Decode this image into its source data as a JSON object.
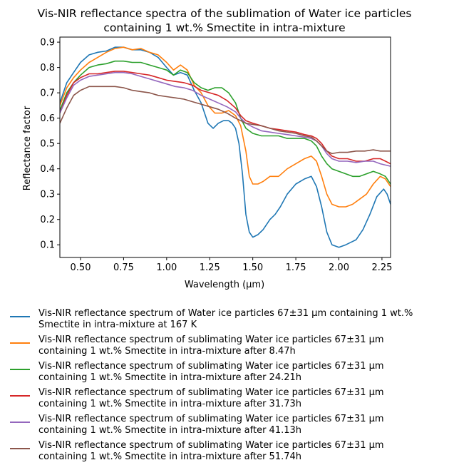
{
  "chart_data": {
    "type": "line",
    "title": "Vis-NIR reflectance spectra of the sublimation of Water ice particles\ncontaining 1 wt.% Smectite in intra-mixture",
    "xlabel": "Wavelength (μm)",
    "ylabel": "Reflectance factor",
    "xlim": [
      0.38,
      2.3
    ],
    "ylim": [
      0.05,
      0.92
    ],
    "xticks": [
      "0.50",
      "0.75",
      "1.00",
      "1.25",
      "1.50",
      "1.75",
      "2.00",
      "2.25"
    ],
    "xtick_values": [
      0.5,
      0.75,
      1.0,
      1.25,
      1.5,
      1.75,
      2.0,
      2.25
    ],
    "yticks": [
      "0.1",
      "0.2",
      "0.3",
      "0.4",
      "0.5",
      "0.6",
      "0.7",
      "0.8",
      "0.9"
    ],
    "ytick_values": [
      0.1,
      0.2,
      0.3,
      0.4,
      0.5,
      0.6,
      0.7,
      0.8,
      0.9
    ],
    "grid": false,
    "legend_position": "below",
    "series": [
      {
        "name": "Vis-NIR reflectance spectrum of Water ice particles 67±31 μm containing 1 wt.%\nSmectite in intra-mixture at 167 K",
        "color": "#1f77b4",
        "x": [
          0.38,
          0.42,
          0.46,
          0.5,
          0.55,
          0.6,
          0.65,
          0.7,
          0.75,
          0.8,
          0.85,
          0.9,
          0.95,
          1.0,
          1.04,
          1.08,
          1.12,
          1.16,
          1.2,
          1.24,
          1.27,
          1.3,
          1.33,
          1.36,
          1.38,
          1.4,
          1.42,
          1.44,
          1.46,
          1.48,
          1.5,
          1.53,
          1.56,
          1.6,
          1.63,
          1.66,
          1.7,
          1.75,
          1.8,
          1.84,
          1.87,
          1.9,
          1.93,
          1.96,
          2.0,
          2.04,
          2.07,
          2.1,
          2.14,
          2.18,
          2.22,
          2.26,
          2.28,
          2.3
        ],
        "y": [
          0.66,
          0.74,
          0.78,
          0.82,
          0.85,
          0.86,
          0.865,
          0.88,
          0.88,
          0.87,
          0.87,
          0.86,
          0.84,
          0.8,
          0.77,
          0.78,
          0.77,
          0.71,
          0.66,
          0.58,
          0.56,
          0.58,
          0.59,
          0.59,
          0.58,
          0.56,
          0.5,
          0.38,
          0.22,
          0.15,
          0.13,
          0.14,
          0.16,
          0.2,
          0.22,
          0.25,
          0.3,
          0.34,
          0.36,
          0.37,
          0.33,
          0.25,
          0.15,
          0.1,
          0.09,
          0.1,
          0.11,
          0.12,
          0.16,
          0.22,
          0.29,
          0.32,
          0.3,
          0.26
        ]
      },
      {
        "name": "Vis-NIR reflectance spectrum of sublimating Water ice particles 67±31 μm\ncontaining 1 wt.% Smectite in intra-mixture after 8.47h",
        "color": "#ff7f0e",
        "x": [
          0.38,
          0.42,
          0.46,
          0.5,
          0.55,
          0.6,
          0.65,
          0.7,
          0.75,
          0.8,
          0.85,
          0.9,
          0.95,
          1.0,
          1.04,
          1.08,
          1.12,
          1.16,
          1.2,
          1.24,
          1.28,
          1.32,
          1.36,
          1.4,
          1.43,
          1.46,
          1.48,
          1.5,
          1.53,
          1.56,
          1.6,
          1.65,
          1.7,
          1.75,
          1.8,
          1.84,
          1.87,
          1.9,
          1.93,
          1.96,
          2.0,
          2.04,
          2.08,
          2.12,
          2.16,
          2.2,
          2.24,
          2.27,
          2.3
        ],
        "y": [
          0.65,
          0.72,
          0.76,
          0.79,
          0.82,
          0.84,
          0.86,
          0.875,
          0.88,
          0.87,
          0.875,
          0.86,
          0.85,
          0.82,
          0.79,
          0.81,
          0.79,
          0.73,
          0.7,
          0.65,
          0.62,
          0.62,
          0.63,
          0.61,
          0.57,
          0.47,
          0.37,
          0.34,
          0.34,
          0.35,
          0.37,
          0.37,
          0.4,
          0.42,
          0.44,
          0.45,
          0.43,
          0.37,
          0.3,
          0.26,
          0.25,
          0.25,
          0.26,
          0.28,
          0.3,
          0.34,
          0.37,
          0.36,
          0.33
        ]
      },
      {
        "name": "Vis-NIR reflectance spectrum of sublimating Water ice particles 67±31 μm\ncontaining 1 wt.% Smectite in intra-mixture after 24.21h",
        "color": "#2ca02c",
        "x": [
          0.38,
          0.42,
          0.46,
          0.5,
          0.55,
          0.6,
          0.65,
          0.7,
          0.75,
          0.8,
          0.85,
          0.9,
          0.95,
          1.0,
          1.04,
          1.08,
          1.12,
          1.16,
          1.2,
          1.24,
          1.28,
          1.32,
          1.36,
          1.4,
          1.43,
          1.46,
          1.5,
          1.55,
          1.6,
          1.65,
          1.7,
          1.75,
          1.8,
          1.84,
          1.87,
          1.9,
          1.93,
          1.96,
          2.0,
          2.04,
          2.08,
          2.12,
          2.16,
          2.2,
          2.24,
          2.27,
          2.3
        ],
        "y": [
          0.63,
          0.7,
          0.74,
          0.77,
          0.8,
          0.81,
          0.815,
          0.825,
          0.825,
          0.82,
          0.82,
          0.81,
          0.8,
          0.79,
          0.77,
          0.79,
          0.78,
          0.74,
          0.72,
          0.71,
          0.72,
          0.72,
          0.7,
          0.66,
          0.6,
          0.56,
          0.54,
          0.53,
          0.53,
          0.53,
          0.52,
          0.52,
          0.52,
          0.51,
          0.49,
          0.45,
          0.42,
          0.4,
          0.39,
          0.38,
          0.37,
          0.37,
          0.38,
          0.39,
          0.38,
          0.37,
          0.34
        ]
      },
      {
        "name": "Vis-NIR reflectance spectrum of sublimating Water ice particles 67±31 μm\ncontaining 1 wt.% Smectite in intra-mixture after 31.73h",
        "color": "#d62728",
        "x": [
          0.38,
          0.42,
          0.46,
          0.5,
          0.55,
          0.6,
          0.65,
          0.7,
          0.75,
          0.8,
          0.85,
          0.9,
          0.95,
          1.0,
          1.05,
          1.1,
          1.15,
          1.2,
          1.25,
          1.3,
          1.35,
          1.4,
          1.43,
          1.46,
          1.5,
          1.55,
          1.6,
          1.65,
          1.7,
          1.75,
          1.8,
          1.84,
          1.87,
          1.9,
          1.93,
          1.96,
          2.0,
          2.05,
          2.1,
          2.15,
          2.2,
          2.24,
          2.27,
          2.3
        ],
        "y": [
          0.62,
          0.69,
          0.74,
          0.76,
          0.775,
          0.775,
          0.78,
          0.785,
          0.785,
          0.78,
          0.775,
          0.77,
          0.76,
          0.75,
          0.745,
          0.74,
          0.73,
          0.71,
          0.7,
          0.69,
          0.67,
          0.64,
          0.61,
          0.59,
          0.58,
          0.57,
          0.56,
          0.555,
          0.55,
          0.545,
          0.535,
          0.53,
          0.52,
          0.5,
          0.47,
          0.45,
          0.44,
          0.44,
          0.43,
          0.43,
          0.44,
          0.44,
          0.43,
          0.42
        ]
      },
      {
        "name": "Vis-NIR reflectance spectrum of sublimating Water ice particles 67±31 μm\ncontaining 1 wt.% Smectite in intra-mixture after 41.13h",
        "color": "#9467bd",
        "x": [
          0.38,
          0.42,
          0.46,
          0.5,
          0.55,
          0.6,
          0.65,
          0.7,
          0.75,
          0.8,
          0.85,
          0.9,
          0.95,
          1.0,
          1.05,
          1.1,
          1.15,
          1.2,
          1.25,
          1.3,
          1.35,
          1.4,
          1.43,
          1.46,
          1.5,
          1.55,
          1.6,
          1.65,
          1.7,
          1.75,
          1.8,
          1.84,
          1.87,
          1.9,
          1.93,
          1.96,
          2.0,
          2.05,
          2.1,
          2.15,
          2.2,
          2.24,
          2.27,
          2.3
        ],
        "y": [
          0.62,
          0.68,
          0.73,
          0.75,
          0.765,
          0.77,
          0.775,
          0.78,
          0.78,
          0.775,
          0.765,
          0.755,
          0.745,
          0.735,
          0.725,
          0.72,
          0.71,
          0.69,
          0.675,
          0.66,
          0.645,
          0.625,
          0.6,
          0.58,
          0.565,
          0.55,
          0.545,
          0.54,
          0.535,
          0.53,
          0.525,
          0.52,
          0.51,
          0.49,
          0.46,
          0.44,
          0.43,
          0.43,
          0.425,
          0.43,
          0.43,
          0.42,
          0.415,
          0.41
        ]
      },
      {
        "name": "Vis-NIR reflectance spectrum of sublimating Water ice particles 67±31 μm\ncontaining 1 wt.% Smectite in intra-mixture after 51.74h",
        "color": "#8c564b",
        "x": [
          0.38,
          0.42,
          0.46,
          0.5,
          0.55,
          0.6,
          0.65,
          0.7,
          0.75,
          0.8,
          0.85,
          0.9,
          0.95,
          1.0,
          1.05,
          1.1,
          1.15,
          1.2,
          1.25,
          1.3,
          1.35,
          1.4,
          1.43,
          1.46,
          1.5,
          1.55,
          1.6,
          1.65,
          1.7,
          1.75,
          1.8,
          1.84,
          1.87,
          1.9,
          1.93,
          1.96,
          2.0,
          2.05,
          2.1,
          2.15,
          2.2,
          2.24,
          2.27,
          2.3
        ],
        "y": [
          0.58,
          0.64,
          0.69,
          0.71,
          0.725,
          0.725,
          0.725,
          0.725,
          0.72,
          0.71,
          0.705,
          0.7,
          0.69,
          0.685,
          0.68,
          0.675,
          0.665,
          0.655,
          0.645,
          0.635,
          0.62,
          0.6,
          0.59,
          0.58,
          0.575,
          0.57,
          0.56,
          0.55,
          0.545,
          0.54,
          0.53,
          0.525,
          0.51,
          0.49,
          0.47,
          0.46,
          0.465,
          0.465,
          0.47,
          0.47,
          0.475,
          0.47,
          0.47,
          0.47
        ]
      }
    ]
  }
}
